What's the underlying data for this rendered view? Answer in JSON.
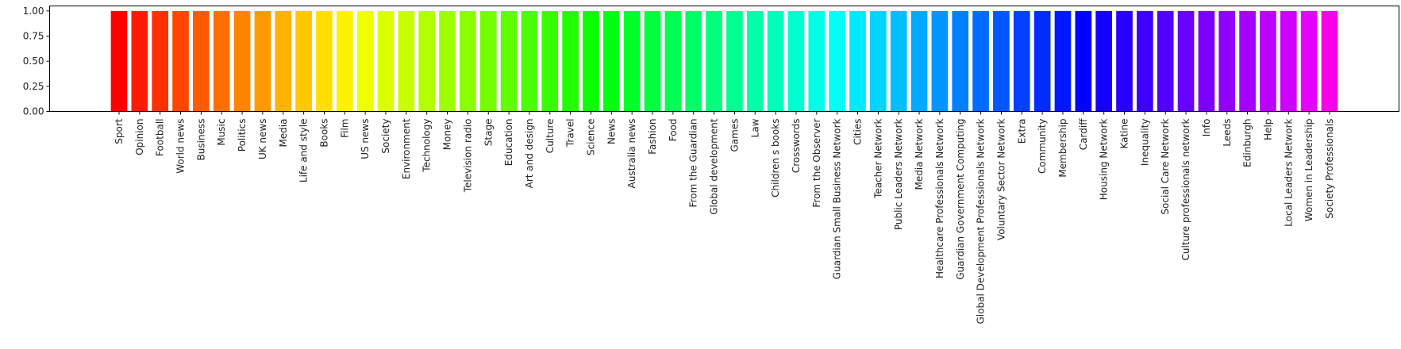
{
  "chart_data": {
    "type": "bar",
    "title": "",
    "xlabel": "",
    "ylabel": "",
    "ylim": [
      0,
      1.05
    ],
    "yticks": [
      0.0,
      0.25,
      0.5,
      0.75,
      1.0
    ],
    "ytick_labels": [
      "0.00",
      "0.25",
      "0.50",
      "0.75",
      "1.00"
    ],
    "grid": false,
    "color_map": "hsv",
    "categories": [
      "Sport",
      "Opinion",
      "Football",
      "World news",
      "Business",
      "Music",
      "Politics",
      "UK news",
      "Media",
      "Life and style",
      "Books",
      "Film",
      "US news",
      "Society",
      "Environment",
      "Technology",
      "Money",
      "Television radio",
      "Stage",
      "Education",
      "Art and design",
      "Culture",
      "Travel",
      "Science",
      "News",
      "Australia news",
      "Fashion",
      "Food",
      "From the Guardian",
      "Global development",
      "Games",
      "Law",
      "Children s books",
      "Crosswords",
      "From the Observer",
      "Guardian Small Business Network",
      "Cities",
      "Teacher Network",
      "Public Leaders Network",
      "Media Network",
      "Healthcare Professionals Network",
      "Guardian Government Computing",
      "Global Development Professionals Network",
      "Voluntary Sector Network",
      "Extra",
      "Community",
      "Membership",
      "Cardiff",
      "Housing Network",
      "Katine",
      "Inequality",
      "Social Care Network",
      "Culture professionals network",
      "Info",
      "Leeds",
      "Edinburgh",
      "Help",
      "Local Leaders Network",
      "Women in Leadership",
      "Society Professionals"
    ],
    "values": [
      1,
      1,
      1,
      1,
      1,
      1,
      1,
      1,
      1,
      1,
      1,
      1,
      1,
      1,
      1,
      1,
      1,
      1,
      1,
      1,
      1,
      1,
      1,
      1,
      1,
      1,
      1,
      1,
      1,
      1,
      1,
      1,
      1,
      1,
      1,
      1,
      1,
      1,
      1,
      1,
      1,
      1,
      1,
      1,
      1,
      1,
      1,
      1,
      1,
      1,
      1,
      1,
      1,
      1,
      1,
      1,
      1,
      1,
      1,
      1
    ],
    "colors": [
      "#ff0000",
      "#ff1a00",
      "#ff3000",
      "#ff4500",
      "#ff5a00",
      "#ff6f00",
      "#ff8400",
      "#ff9900",
      "#ffb300",
      "#ffc800",
      "#ffde00",
      "#fff200",
      "#f0ff00",
      "#dcff00",
      "#c8ff00",
      "#b3ff00",
      "#9eff00",
      "#89ff00",
      "#74ff00",
      "#5fff00",
      "#4aff00",
      "#35ff00",
      "#1fff00",
      "#0aff00",
      "#00ff12",
      "#00ff28",
      "#00ff3d",
      "#00ff52",
      "#00ff67",
      "#00ff7c",
      "#00ff91",
      "#00ffa6",
      "#00ffbb",
      "#00ffd0",
      "#00ffe6",
      "#00fffb",
      "#00eaff",
      "#00d4ff",
      "#00bfff",
      "#00aaff",
      "#0095ff",
      "#0080ff",
      "#006bff",
      "#0056ff",
      "#0041ff",
      "#002cff",
      "#0017ff",
      "#0002ff",
      "#1300ff",
      "#2800ff",
      "#3d00ff",
      "#5200ff",
      "#6700ff",
      "#7c00ff",
      "#9100ff",
      "#a600ff",
      "#bb00ff",
      "#d000ff",
      "#e500ff",
      "#fa00e8"
    ]
  }
}
